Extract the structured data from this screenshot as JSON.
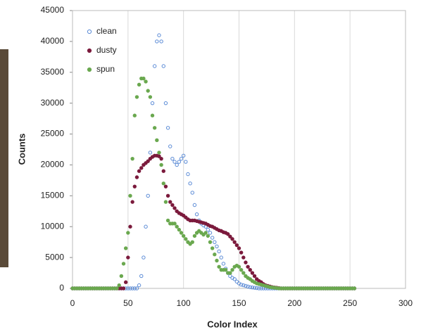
{
  "chart_data": {
    "type": "scatter",
    "x_label": "Color Index",
    "y_label": "Counts",
    "x": [
      0,
      2,
      4,
      6,
      8,
      10,
      12,
      14,
      16,
      18,
      20,
      22,
      24,
      26,
      28,
      30,
      32,
      34,
      36,
      38,
      40,
      42,
      44,
      46,
      48,
      50,
      52,
      54,
      56,
      58,
      60,
      62,
      64,
      66,
      68,
      70,
      72,
      74,
      76,
      78,
      80,
      82,
      84,
      86,
      88,
      90,
      92,
      94,
      96,
      98,
      100,
      102,
      104,
      106,
      108,
      110,
      112,
      114,
      116,
      118,
      120,
      122,
      124,
      126,
      128,
      130,
      132,
      134,
      136,
      138,
      140,
      142,
      144,
      146,
      148,
      150,
      152,
      154,
      156,
      158,
      160,
      162,
      164,
      166,
      168,
      170,
      172,
      174,
      176,
      178,
      180,
      182,
      184,
      186,
      188,
      190,
      192,
      194,
      196,
      198,
      200,
      202,
      204,
      206,
      208,
      210,
      212,
      214,
      216,
      218,
      220,
      222,
      224,
      226,
      228,
      230,
      232,
      234,
      236,
      238,
      240,
      242,
      244,
      246,
      248,
      250,
      252,
      254
    ],
    "series": [
      {
        "name": "clean",
        "color": "#5b8bd6",
        "filled": false,
        "values": [
          0,
          0,
          0,
          0,
          0,
          0,
          0,
          0,
          0,
          0,
          0,
          0,
          0,
          0,
          0,
          0,
          0,
          0,
          0,
          0,
          0,
          0,
          0,
          0,
          0,
          0,
          0,
          0,
          0,
          0,
          500,
          2000,
          5000,
          10000,
          15000,
          22000,
          30000,
          36000,
          40000,
          41000,
          40000,
          36000,
          30000,
          26000,
          23000,
          21000,
          20500,
          20000,
          20500,
          21000,
          21500,
          20500,
          18500,
          17000,
          15500,
          13500,
          12000,
          11000,
          10500,
          10200,
          10000,
          9500,
          9000,
          8200,
          7500,
          6800,
          6000,
          5000,
          4000,
          3200,
          2500,
          2000,
          1700,
          1500,
          1100,
          800,
          600,
          500,
          400,
          300,
          200,
          150,
          100,
          50,
          0,
          0,
          0,
          0,
          0,
          0,
          0,
          0,
          0,
          0,
          0,
          0,
          0,
          0,
          0,
          0,
          0,
          0,
          0,
          0,
          0,
          0,
          0,
          0,
          0,
          0,
          0,
          0,
          0,
          0,
          0,
          0,
          0,
          0,
          0,
          0,
          0,
          0,
          0,
          0,
          0,
          0,
          0,
          0
        ]
      },
      {
        "name": "dusty",
        "color": "#7b1a3c",
        "filled": true,
        "values": [
          0,
          0,
          0,
          0,
          0,
          0,
          0,
          0,
          0,
          0,
          0,
          0,
          0,
          0,
          0,
          0,
          0,
          0,
          0,
          0,
          0,
          0,
          0,
          0,
          1000,
          5000,
          10000,
          14000,
          16500,
          18000,
          19000,
          19500,
          20000,
          20300,
          20600,
          21000,
          21300,
          21500,
          21500,
          21400,
          21000,
          19000,
          16500,
          15000,
          14000,
          13500,
          13000,
          12500,
          12200,
          12000,
          11800,
          11500,
          11200,
          11000,
          11000,
          11000,
          10900,
          10800,
          10700,
          10600,
          10500,
          10300,
          10100,
          10000,
          9800,
          9600,
          9400,
          9300,
          9100,
          9000,
          8800,
          8400,
          8000,
          7500,
          7000,
          6500,
          5800,
          5000,
          4200,
          3500,
          3000,
          2500,
          2000,
          1500,
          1200,
          1000,
          700,
          500,
          400,
          300,
          200,
          150,
          100,
          50,
          0,
          0,
          0,
          0,
          0,
          0,
          0,
          0,
          0,
          0,
          0,
          0,
          0,
          0,
          0,
          0,
          0,
          0,
          0,
          0,
          0,
          0,
          0,
          0,
          0,
          0,
          0,
          0,
          0,
          0,
          0,
          0,
          0,
          0
        ]
      },
      {
        "name": "spun",
        "color": "#6aa84f",
        "filled": true,
        "values": [
          0,
          0,
          0,
          0,
          0,
          0,
          0,
          0,
          0,
          0,
          0,
          0,
          0,
          0,
          0,
          0,
          0,
          0,
          0,
          0,
          0,
          500,
          2000,
          4000,
          6500,
          9000,
          15000,
          21000,
          28000,
          31000,
          33000,
          34000,
          34000,
          33500,
          32000,
          31000,
          28000,
          26000,
          24000,
          22000,
          20000,
          17000,
          14000,
          11000,
          10500,
          10500,
          10500,
          10000,
          9500,
          9000,
          8500,
          8000,
          7500,
          7200,
          7500,
          8500,
          9000,
          9300,
          9000,
          8700,
          9000,
          8500,
          7500,
          6500,
          5500,
          4500,
          3500,
          3000,
          3000,
          3000,
          2500,
          2500,
          3000,
          3500,
          3700,
          3500,
          3000,
          2500,
          2000,
          1700,
          1500,
          1200,
          1000,
          800,
          700,
          600,
          500,
          400,
          300,
          200,
          150,
          100,
          50,
          0,
          0,
          0,
          0,
          0,
          0,
          0,
          0,
          0,
          0,
          0,
          0,
          0,
          0,
          0,
          0,
          0,
          0,
          0,
          0,
          0,
          0,
          0,
          0,
          0,
          0,
          0,
          0,
          0,
          0,
          0,
          0,
          0,
          0,
          0
        ]
      }
    ],
    "xlim": [
      0,
      300
    ],
    "xticks": [
      0,
      50,
      100,
      150,
      200,
      250,
      300
    ],
    "ylim": [
      0,
      45000
    ],
    "yticks": [
      0,
      5000,
      10000,
      15000,
      20000,
      25000,
      30000,
      35000,
      40000,
      45000
    ],
    "grid": "x",
    "legend": "upper-left"
  }
}
